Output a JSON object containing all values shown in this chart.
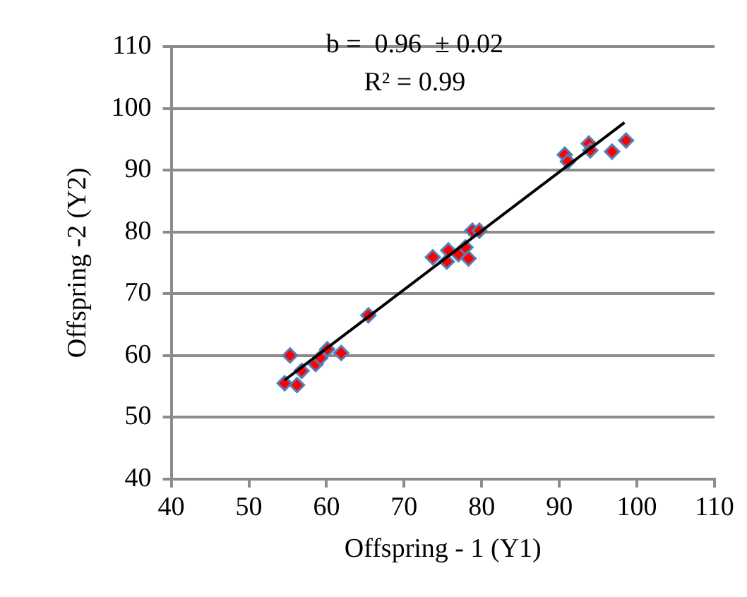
{
  "chart_data": {
    "type": "scatter",
    "xlabel": "Offspring - 1 (Y1)",
    "ylabel": "Offspring -2 (Y2)",
    "annotations": [
      "b =  0.96  ± 0.02",
      "R² = 0.99"
    ],
    "xlim": [
      40,
      110
    ],
    "xticks": [
      40,
      50,
      60,
      70,
      80,
      90,
      100,
      110
    ],
    "ylim": [
      40,
      110
    ],
    "yticks": [
      40,
      50,
      60,
      70,
      80,
      90,
      100,
      110
    ],
    "grid": "y",
    "legend": false,
    "marker": "diamond",
    "x": [
      54.6,
      55.3,
      56.2,
      56.8,
      58.6,
      59.2,
      60.1,
      61.9,
      65.4,
      73.7,
      75.5,
      75.7,
      77.0,
      77.9,
      78.3,
      78.8,
      79.7,
      90.7,
      91.1,
      93.8,
      94.0,
      96.8,
      98.6
    ],
    "series": [
      {
        "type": "scatter",
        "color": "#ff0000",
        "values": [
          55.5,
          60,
          55.2,
          57.5,
          58.6,
          59.6,
          61,
          60.4,
          66.5,
          75.9,
          75.2,
          77,
          76.4,
          77.5,
          75.7,
          80.2,
          80.2,
          92.5,
          91.4,
          94.3,
          93.2,
          93,
          94.8
        ]
      },
      {
        "type": "line",
        "marker": "none",
        "color": "#000000",
        "x": [
          54.6,
          98.4
        ],
        "values": [
          56,
          97.7
        ]
      }
    ]
  }
}
